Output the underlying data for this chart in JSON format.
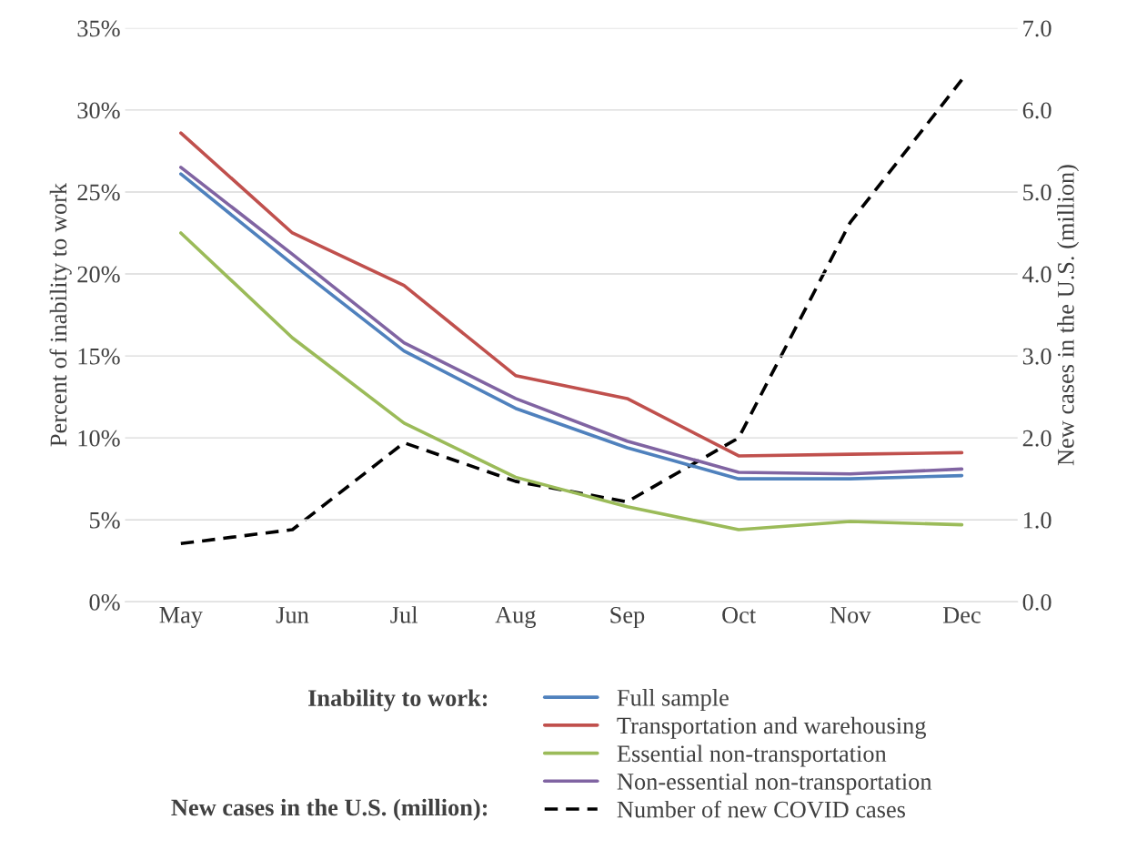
{
  "chart_data": {
    "type": "line",
    "categories": [
      "May",
      "Jun",
      "Jul",
      "Aug",
      "Sep",
      "Oct",
      "Nov",
      "Dec"
    ],
    "ylabel": "Percent of inability to work",
    "y2label": "New cases in the U.S. (million)",
    "ylim": [
      0,
      35
    ],
    "yticks": [
      {
        "value": 0,
        "label": "0%"
      },
      {
        "value": 5,
        "label": "5%"
      },
      {
        "value": 10,
        "label": "10%"
      },
      {
        "value": 15,
        "label": "15%"
      },
      {
        "value": 20,
        "label": "20%"
      },
      {
        "value": 25,
        "label": "25%"
      },
      {
        "value": 30,
        "label": "30%"
      },
      {
        "value": 35,
        "label": "35%"
      }
    ],
    "y2lim": [
      0,
      7
    ],
    "y2ticks": [
      {
        "value": 0,
        "label": "0.0"
      },
      {
        "value": 1,
        "label": "1.0"
      },
      {
        "value": 2,
        "label": "2.0"
      },
      {
        "value": 3,
        "label": "3.0"
      },
      {
        "value": 4,
        "label": "4.0"
      },
      {
        "value": 5,
        "label": "5.0"
      },
      {
        "value": 6,
        "label": "6.0"
      },
      {
        "value": 7,
        "label": "7.0"
      }
    ],
    "grid": "y",
    "legend": "bottom",
    "marker": "none",
    "annotations": [
      "Inability to work:",
      "New cases in the U.S. (million):"
    ],
    "series": [
      {
        "name": "Full sample",
        "color": "#4f81bd",
        "values": [
          26.1,
          20.6,
          15.3,
          11.8,
          9.4,
          7.5,
          7.5,
          7.7
        ]
      },
      {
        "name": "Transportation and warehousing",
        "color": "#c0504d",
        "values": [
          28.6,
          22.5,
          19.3,
          13.8,
          12.4,
          8.9,
          9.0,
          9.1
        ]
      },
      {
        "name": "Essential non-transportation",
        "color": "#9bbb59",
        "values": [
          22.5,
          16.1,
          10.9,
          7.6,
          5.8,
          4.4,
          4.9,
          4.7
        ]
      },
      {
        "name": "Non-essential non-transportation",
        "color": "#8064a2",
        "values": [
          26.5,
          21.2,
          15.8,
          12.4,
          9.8,
          7.9,
          7.8,
          8.1
        ]
      },
      {
        "name": "Number of new COVID cases",
        "color": "#000000",
        "axis": "y2",
        "line_style": "dashed",
        "values": [
          0.71,
          0.88,
          1.94,
          1.47,
          1.22,
          2.0,
          4.63,
          6.37
        ]
      }
    ]
  }
}
